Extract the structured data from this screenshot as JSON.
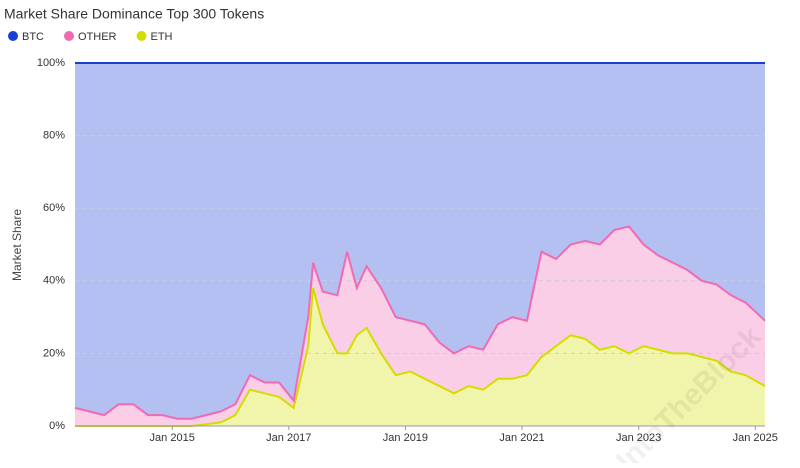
{
  "chart_data": {
    "type": "stacked-area",
    "title": "Market Share Dominance Top 300 Tokens",
    "y_label": "Market Share",
    "watermark": "IntoTheBlock",
    "x": [
      "2013-05",
      "2013-08",
      "2013-11",
      "2014-02",
      "2014-05",
      "2014-08",
      "2014-11",
      "2015-02",
      "2015-05",
      "2015-08",
      "2015-11",
      "2016-02",
      "2016-05",
      "2016-08",
      "2016-11",
      "2017-02",
      "2017-05",
      "2017-06",
      "2017-08",
      "2017-11",
      "2018-01",
      "2018-03",
      "2018-05",
      "2018-08",
      "2018-11",
      "2019-02",
      "2019-05",
      "2019-08",
      "2019-11",
      "2020-02",
      "2020-05",
      "2020-08",
      "2020-11",
      "2021-02",
      "2021-05",
      "2021-08",
      "2021-11",
      "2022-02",
      "2022-05",
      "2022-08",
      "2022-11",
      "2023-02",
      "2023-05",
      "2023-08",
      "2023-11",
      "2024-02",
      "2024-05",
      "2024-08",
      "2024-11",
      "2025-03"
    ],
    "series": [
      {
        "name": "BTC",
        "color": "#1a3fd6",
        "values": [
          95,
          96,
          97,
          94,
          94,
          97,
          97,
          98,
          98,
          97,
          96,
          94,
          86,
          88,
          88,
          93,
          70,
          55,
          63,
          64,
          52,
          62,
          56,
          62,
          70,
          71,
          72,
          77,
          80,
          78,
          79,
          72,
          70,
          71,
          52,
          54,
          50,
          49,
          50,
          46,
          45,
          50,
          53,
          55,
          57,
          60,
          61,
          64,
          66,
          71
        ]
      },
      {
        "name": "OTHER",
        "color": "#f06ab4",
        "values": [
          5,
          4,
          3,
          6,
          6,
          3,
          3,
          2,
          2,
          2.5,
          3,
          3,
          4,
          3,
          4,
          2,
          8,
          7,
          9,
          16,
          28,
          13,
          17,
          18,
          16,
          14,
          15,
          12,
          11,
          11,
          11,
          15,
          17,
          15,
          29,
          24,
          25,
          27,
          29,
          32,
          35,
          28,
          26,
          25,
          23,
          21,
          21,
          21,
          20,
          18
        ]
      },
      {
        "name": "ETH",
        "color": "#d4dd00",
        "values": [
          0,
          0,
          0,
          0,
          0,
          0,
          0,
          0,
          0,
          0.5,
          1,
          3,
          10,
          9,
          8,
          5,
          22,
          38,
          28,
          20,
          20,
          25,
          27,
          20,
          14,
          15,
          13,
          11,
          9,
          11,
          10,
          13,
          13,
          14,
          19,
          22,
          25,
          24,
          21,
          22,
          20,
          22,
          21,
          20,
          20,
          19,
          18,
          15,
          14,
          11
        ]
      }
    ],
    "xlim": [
      "2013-05",
      "2025-03"
    ],
    "xticks": [
      {
        "value": "2015-01",
        "label": "Jan 2015"
      },
      {
        "value": "2017-01",
        "label": "Jan 2017"
      },
      {
        "value": "2019-01",
        "label": "Jan 2019"
      },
      {
        "value": "2021-01",
        "label": "Jan 2021"
      },
      {
        "value": "2023-01",
        "label": "Jan 2023"
      },
      {
        "value": "2025-01",
        "label": "Jan 2025"
      }
    ],
    "ylim": [
      0,
      100
    ],
    "yticks": [
      {
        "value": 0,
        "label": "0%"
      },
      {
        "value": 20,
        "label": "20%"
      },
      {
        "value": 40,
        "label": "40%"
      },
      {
        "value": 60,
        "label": "60%"
      },
      {
        "value": 80,
        "label": "80%"
      },
      {
        "value": 100,
        "label": "100%"
      }
    ],
    "grid": true,
    "legend": "top-left"
  }
}
